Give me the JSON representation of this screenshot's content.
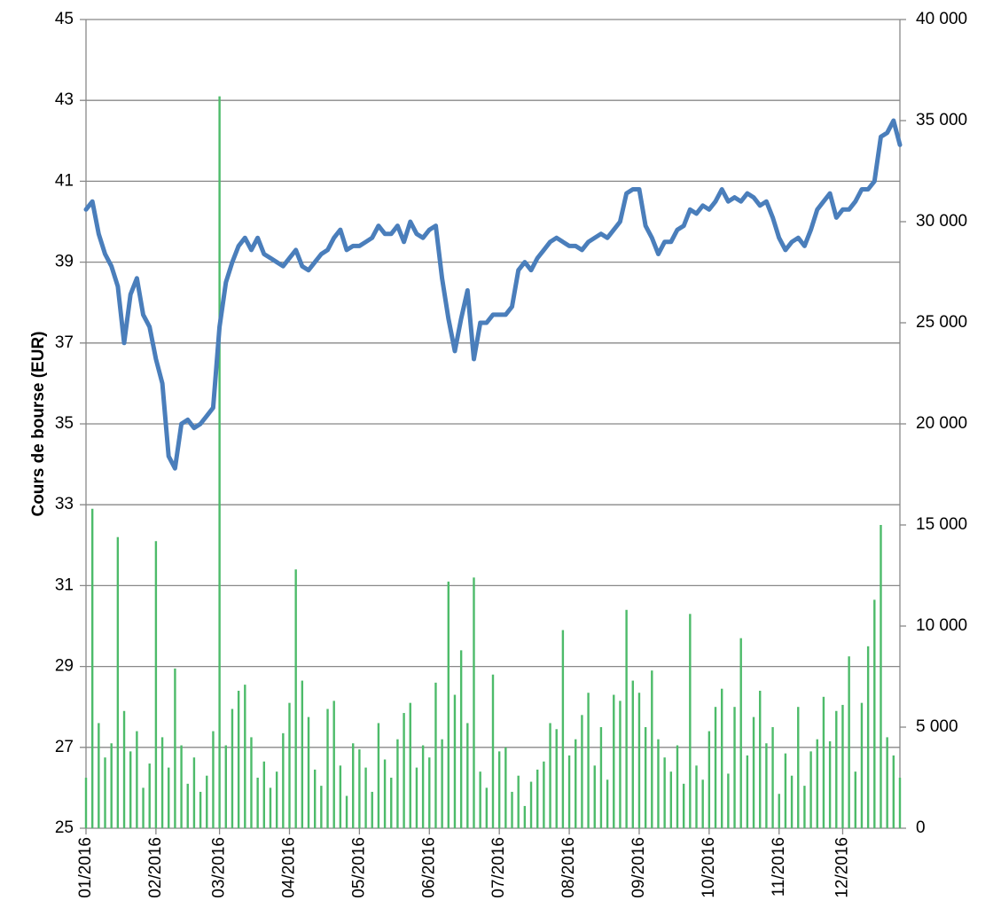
{
  "chart_data": {
    "type": "line",
    "y_label": "Cours de bourse (EUR)",
    "categories": [
      "01/2016",
      null,
      null,
      null,
      null,
      null,
      null,
      null,
      null,
      null,
      null,
      "02/2016",
      null,
      null,
      null,
      null,
      null,
      null,
      null,
      null,
      null,
      "03/2016",
      null,
      null,
      null,
      null,
      null,
      null,
      null,
      null,
      null,
      null,
      "04/2016",
      null,
      null,
      null,
      null,
      null,
      null,
      null,
      null,
      null,
      null,
      "05/2016",
      null,
      null,
      null,
      null,
      null,
      null,
      null,
      null,
      null,
      null,
      "06/2016",
      null,
      null,
      null,
      null,
      null,
      null,
      null,
      null,
      null,
      null,
      "07/2016",
      null,
      null,
      null,
      null,
      null,
      null,
      null,
      null,
      null,
      null,
      "08/2016",
      null,
      null,
      null,
      null,
      null,
      null,
      null,
      null,
      null,
      null,
      "09/2016",
      null,
      null,
      null,
      null,
      null,
      null,
      null,
      null,
      null,
      null,
      "10/2016",
      null,
      null,
      null,
      null,
      null,
      null,
      null,
      null,
      null,
      null,
      "11/2016",
      null,
      null,
      null,
      null,
      null,
      null,
      null,
      null,
      null,
      "12/2016",
      null,
      null,
      null,
      null,
      null,
      null,
      null,
      null,
      null
    ],
    "series": [
      {
        "type": "bar",
        "axis": "y2",
        "color": "#4dbb6a",
        "values": [
          2500,
          15800,
          5200,
          3500,
          4200,
          14400,
          5800,
          3800,
          4800,
          2000,
          3200,
          14200,
          4500,
          3000,
          7900,
          4100,
          2200,
          3500,
          1800,
          2600,
          4800,
          36200,
          4100,
          5900,
          6800,
          7100,
          4500,
          2500,
          3300,
          2000,
          2800,
          4700,
          6200,
          12800,
          7300,
          5500,
          2900,
          2100,
          5900,
          6300,
          3100,
          1600,
          4200,
          3900,
          3000,
          1800,
          5200,
          3400,
          2500,
          4400,
          5700,
          6200,
          3000,
          4100,
          3500,
          7200,
          4400,
          12200,
          6600,
          8800,
          5200,
          12400,
          2800,
          2000,
          7600,
          3800,
          4000,
          1800,
          2600,
          1100,
          2300,
          2900,
          3300,
          5200,
          4900,
          9800,
          3600,
          4400,
          5600,
          6700,
          3100,
          5000,
          2400,
          6600,
          6300,
          10800,
          7300,
          6700,
          5000,
          7800,
          4400,
          3500,
          2800,
          4100,
          2200,
          10600,
          3100,
          2400,
          4800,
          6000,
          6900,
          2700,
          6000,
          9400,
          3600,
          5500,
          6800,
          4200,
          5000,
          1700,
          3700,
          2600,
          6000,
          2100,
          3800,
          4400,
          6500,
          4300,
          5800,
          6100,
          8500,
          2800,
          6200,
          9000,
          11300,
          15000,
          4500,
          3600,
          2500
        ]
      },
      {
        "type": "line",
        "color": "#4a7ebb",
        "values": [
          40.3,
          40.5,
          39.7,
          39.2,
          38.9,
          38.4,
          37.0,
          38.2,
          38.6,
          37.7,
          37.4,
          36.6,
          36.0,
          34.2,
          33.9,
          35.0,
          35.1,
          34.9,
          35.0,
          35.2,
          35.4,
          37.4,
          38.5,
          39.0,
          39.4,
          39.6,
          39.3,
          39.6,
          39.2,
          39.1,
          39.0,
          38.9,
          39.1,
          39.3,
          38.9,
          38.8,
          39.0,
          39.2,
          39.3,
          39.6,
          39.8,
          39.3,
          39.4,
          39.4,
          39.5,
          39.6,
          39.9,
          39.7,
          39.7,
          39.9,
          39.5,
          40.0,
          39.7,
          39.6,
          39.8,
          39.9,
          38.6,
          37.6,
          36.8,
          37.6,
          38.3,
          36.6,
          37.5,
          37.5,
          37.7,
          37.7,
          37.7,
          37.9,
          38.8,
          39.0,
          38.8,
          39.1,
          39.3,
          39.5,
          39.6,
          39.5,
          39.4,
          39.4,
          39.3,
          39.5,
          39.6,
          39.7,
          39.6,
          39.8,
          40.0,
          40.7,
          40.8,
          40.8,
          39.9,
          39.6,
          39.2,
          39.5,
          39.5,
          39.8,
          39.9,
          40.3,
          40.2,
          40.4,
          40.3,
          40.5,
          40.8,
          40.5,
          40.6,
          40.5,
          40.7,
          40.6,
          40.4,
          40.5,
          40.1,
          39.6,
          39.3,
          39.5,
          39.6,
          39.4,
          39.8,
          40.3,
          40.5,
          40.7,
          40.1,
          40.3,
          40.3,
          40.5,
          40.8,
          40.8,
          41.0,
          42.1,
          42.2,
          42.5,
          41.9
        ]
      }
    ],
    "ylim": [
      25,
      45
    ],
    "yticks": [
      25,
      27,
      29,
      31,
      33,
      35,
      37,
      39,
      41,
      43,
      45
    ],
    "y2lim": [
      0,
      40000
    ],
    "y2ticks": [
      0,
      {
        "value": 5000,
        "label": "5 000"
      },
      {
        "value": 10000,
        "label": "10 000"
      },
      {
        "value": 15000,
        "label": "15 000"
      },
      {
        "value": 20000,
        "label": "20 000"
      },
      {
        "value": 25000,
        "label": "25 000"
      },
      {
        "value": 30000,
        "label": "30 000"
      },
      {
        "value": 35000,
        "label": "35 000"
      },
      {
        "value": 40000,
        "label": "40 000"
      }
    ],
    "grid": true
  }
}
